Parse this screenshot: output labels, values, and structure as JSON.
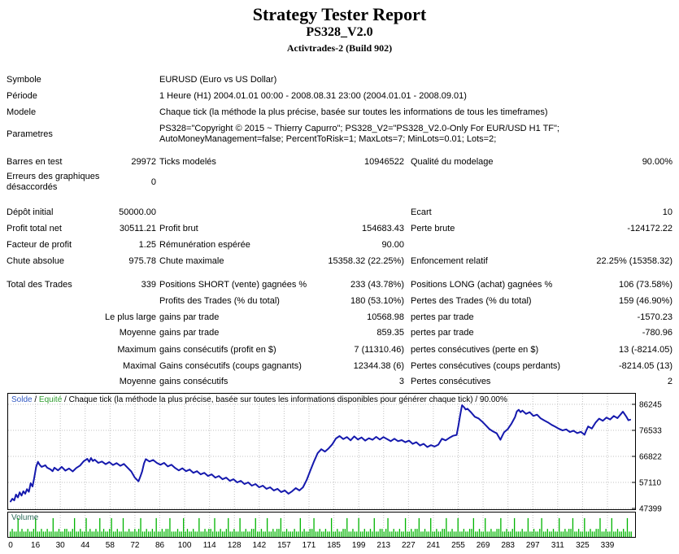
{
  "header": {
    "title": "Strategy Tester Report",
    "strategy": "PS328_V2.0",
    "account": "Activtrades-2 (Build 902)"
  },
  "report": {
    "rows": [
      [
        "Symbole",
        "",
        "EURUSD (Euro vs US Dollar)",
        "",
        "",
        ""
      ],
      [
        "Période",
        "",
        "1 Heure (H1) 2004.01.01 00:00 - 2008.08.31 23:00 (2004.01.01 - 2008.09.01)",
        "",
        "",
        ""
      ],
      [
        "Modele",
        "",
        "Chaque tick (la méthode la plus précise, basée sur toutes les informations de tous les timeframes)",
        "",
        "",
        ""
      ],
      [
        "Parametres",
        "",
        "PS328=\"Copyright © 2015 ~ Thierry Capurro\"; PS328_V2=\"PS328_V2.0-Only For EUR/USD H1 TF\";\nAutoMoneyManagement=false; PercentToRisk=1; MaxLots=7; MinLots=0.01; Lots=2;",
        "",
        "",
        ""
      ],
      [
        "Barres en test",
        "29972",
        "Ticks modelés",
        "10946522",
        "Qualité du modelage",
        "90.00%"
      ],
      [
        "Erreurs des graphiques\ndésaccordés",
        "0",
        "",
        "",
        "",
        ""
      ],
      [
        "Dépôt initial",
        "50000.00",
        "",
        "",
        "Ecart",
        "10"
      ],
      [
        "Profit total net",
        "30511.21",
        "Profit brut",
        "154683.43",
        "Perte brute",
        "-124172.22"
      ],
      [
        "Facteur de profit",
        "1.25",
        "Rémunération espérée",
        "90.00",
        "",
        ""
      ],
      [
        "Chute absolue",
        "975.78",
        "Chute maximale",
        "15358.32 (22.25%)",
        "Enfoncement relatif",
        "22.25% (15358.32)"
      ],
      [
        "Total des Trades",
        "339",
        "Positions SHORT (vente) gagnées %",
        "233 (43.78%)",
        "Positions LONG (achat) gagnées %",
        "106 (73.58%)"
      ],
      [
        "",
        "",
        "Profits des Trades (% du total)",
        "180 (53.10%)",
        "Pertes des Trades (% du total)",
        "159 (46.90%)"
      ],
      [
        "",
        "Le plus large",
        "gains par trade",
        "10568.98",
        "pertes par trade",
        "-1570.23"
      ],
      [
        "",
        "Moyenne",
        "gains par trade",
        "859.35",
        "pertes par trade",
        "-780.96"
      ],
      [
        "",
        "Maximum",
        "gains consécutifs (profit en $)",
        "7 (11310.46)",
        "pertes consécutives (perte en $)",
        "13 (-8214.05)"
      ],
      [
        "",
        "Maximal",
        "Gains consécutifs (coups gagnants)",
        "12344.38 (6)",
        "Pertes consécutives (coups perdants)",
        "-8214.05 (13)"
      ],
      [
        "",
        "Moyenne",
        "gains consécutifs",
        "3",
        "Pertes consécutives",
        "2"
      ]
    ]
  },
  "chart_data": {
    "type": "line",
    "legend": {
      "balance_label": "Solde",
      "equity_label": "Equité",
      "separator": " / ",
      "model_text": "Chaque tick (la méthode la plus précise, basée sur toutes les informations disponibles pour générer chaque tick)",
      "quality": "90.00%"
    },
    "xlabel": "",
    "ylabel": "",
    "xlim": [
      0,
      339
    ],
    "ylim": [
      47399,
      86245
    ],
    "grid": true,
    "y_ticks": [
      86245,
      76533,
      66822,
      57110,
      47399
    ],
    "x_ticks": [
      0,
      16,
      30,
      44,
      58,
      72,
      86,
      100,
      114,
      128,
      142,
      157,
      171,
      185,
      199,
      213,
      227,
      241,
      255,
      269,
      283,
      297,
      311,
      325,
      339
    ],
    "series": [
      {
        "name": "Solde",
        "color": "#1519ad",
        "points": [
          [
            0,
            50000
          ],
          [
            1,
            51000
          ],
          [
            2,
            50400
          ],
          [
            3,
            52600
          ],
          [
            4,
            51500
          ],
          [
            5,
            53400
          ],
          [
            6,
            52200
          ],
          [
            7,
            53800
          ],
          [
            8,
            52900
          ],
          [
            9,
            54600
          ],
          [
            10,
            53600
          ],
          [
            11,
            56800
          ],
          [
            12,
            55600
          ],
          [
            13,
            59000
          ],
          [
            14,
            63000
          ],
          [
            15,
            64800
          ],
          [
            16,
            63600
          ],
          [
            17,
            62900
          ],
          [
            19,
            63500
          ],
          [
            20,
            62600
          ],
          [
            22,
            61900
          ],
          [
            23,
            61300
          ],
          [
            24,
            62600
          ],
          [
            26,
            61600
          ],
          [
            28,
            62900
          ],
          [
            30,
            61500
          ],
          [
            32,
            62300
          ],
          [
            34,
            61200
          ],
          [
            36,
            62500
          ],
          [
            38,
            63400
          ],
          [
            40,
            65000
          ],
          [
            42,
            65900
          ],
          [
            43,
            64800
          ],
          [
            44,
            66200
          ],
          [
            45,
            65100
          ],
          [
            46,
            65600
          ],
          [
            48,
            64400
          ],
          [
            50,
            64900
          ],
          [
            52,
            63900
          ],
          [
            54,
            64700
          ],
          [
            56,
            63600
          ],
          [
            58,
            64300
          ],
          [
            60,
            63300
          ],
          [
            62,
            64000
          ],
          [
            64,
            62600
          ],
          [
            66,
            61200
          ],
          [
            68,
            58900
          ],
          [
            70,
            57500
          ],
          [
            71,
            59300
          ],
          [
            72,
            61200
          ],
          [
            73,
            64200
          ],
          [
            74,
            65800
          ],
          [
            76,
            64900
          ],
          [
            78,
            65500
          ],
          [
            80,
            64400
          ],
          [
            82,
            63700
          ],
          [
            84,
            64400
          ],
          [
            86,
            63100
          ],
          [
            88,
            63700
          ],
          [
            90,
            62500
          ],
          [
            92,
            61600
          ],
          [
            94,
            62400
          ],
          [
            96,
            61300
          ],
          [
            98,
            61900
          ],
          [
            100,
            60700
          ],
          [
            102,
            61300
          ],
          [
            104,
            60100
          ],
          [
            106,
            60700
          ],
          [
            108,
            59500
          ],
          [
            110,
            60100
          ],
          [
            112,
            58900
          ],
          [
            114,
            59500
          ],
          [
            116,
            58300
          ],
          [
            118,
            58900
          ],
          [
            120,
            57700
          ],
          [
            122,
            58300
          ],
          [
            124,
            57100
          ],
          [
            126,
            57700
          ],
          [
            128,
            56500
          ],
          [
            130,
            57100
          ],
          [
            132,
            55900
          ],
          [
            134,
            56500
          ],
          [
            136,
            55300
          ],
          [
            138,
            55900
          ],
          [
            140,
            54700
          ],
          [
            142,
            55300
          ],
          [
            144,
            54100
          ],
          [
            146,
            54700
          ],
          [
            148,
            53500
          ],
          [
            150,
            54100
          ],
          [
            152,
            52900
          ],
          [
            154,
            53800
          ],
          [
            156,
            55000
          ],
          [
            158,
            54100
          ],
          [
            160,
            55300
          ],
          [
            162,
            58000
          ],
          [
            164,
            61500
          ],
          [
            166,
            64900
          ],
          [
            168,
            68000
          ],
          [
            170,
            69500
          ],
          [
            172,
            68600
          ],
          [
            174,
            69800
          ],
          [
            176,
            71300
          ],
          [
            178,
            73500
          ],
          [
            180,
            74400
          ],
          [
            182,
            73300
          ],
          [
            184,
            74000
          ],
          [
            186,
            72800
          ],
          [
            188,
            74300
          ],
          [
            190,
            73100
          ],
          [
            192,
            73900
          ],
          [
            194,
            72700
          ],
          [
            196,
            73600
          ],
          [
            198,
            73000
          ],
          [
            200,
            74100
          ],
          [
            202,
            73100
          ],
          [
            204,
            74000
          ],
          [
            206,
            73300
          ],
          [
            208,
            72500
          ],
          [
            210,
            73400
          ],
          [
            212,
            72500
          ],
          [
            214,
            72900
          ],
          [
            216,
            72100
          ],
          [
            218,
            72700
          ],
          [
            220,
            71500
          ],
          [
            222,
            72100
          ],
          [
            224,
            70900
          ],
          [
            226,
            71500
          ],
          [
            228,
            70300
          ],
          [
            230,
            71000
          ],
          [
            232,
            70500
          ],
          [
            234,
            71200
          ],
          [
            236,
            73400
          ],
          [
            238,
            72800
          ],
          [
            240,
            73700
          ],
          [
            242,
            74500
          ],
          [
            244,
            74800
          ],
          [
            245,
            78200
          ],
          [
            246,
            82400
          ],
          [
            247,
            85900
          ],
          [
            248,
            85200
          ],
          [
            249,
            84300
          ],
          [
            250,
            84600
          ],
          [
            252,
            83200
          ],
          [
            254,
            81600
          ],
          [
            256,
            81000
          ],
          [
            258,
            79800
          ],
          [
            260,
            78400
          ],
          [
            262,
            77000
          ],
          [
            264,
            76100
          ],
          [
            266,
            75400
          ],
          [
            268,
            73000
          ],
          [
            269,
            74500
          ],
          [
            270,
            75800
          ],
          [
            272,
            77000
          ],
          [
            274,
            79000
          ],
          [
            276,
            81500
          ],
          [
            277,
            83600
          ],
          [
            278,
            84200
          ],
          [
            279,
            83300
          ],
          [
            280,
            83900
          ],
          [
            282,
            82700
          ],
          [
            284,
            83300
          ],
          [
            286,
            81900
          ],
          [
            288,
            82400
          ],
          [
            290,
            81000
          ],
          [
            292,
            80200
          ],
          [
            294,
            79500
          ],
          [
            296,
            78600
          ],
          [
            298,
            77900
          ],
          [
            300,
            77100
          ],
          [
            302,
            76500
          ],
          [
            304,
            76900
          ],
          [
            306,
            75900
          ],
          [
            308,
            76400
          ],
          [
            310,
            75500
          ],
          [
            312,
            76000
          ],
          [
            314,
            74900
          ],
          [
            315,
            76600
          ],
          [
            316,
            78000
          ],
          [
            318,
            77200
          ],
          [
            320,
            79400
          ],
          [
            322,
            80900
          ],
          [
            324,
            80100
          ],
          [
            326,
            81300
          ],
          [
            328,
            80600
          ],
          [
            330,
            81900
          ],
          [
            332,
            81100
          ],
          [
            334,
            82700
          ],
          [
            335,
            83500
          ],
          [
            336,
            82500
          ],
          [
            337,
            81500
          ],
          [
            338,
            80300
          ],
          [
            339,
            80511
          ]
        ]
      }
    ],
    "volume": {
      "label": "Volume",
      "label_color": "#2f6b5c",
      "bar_color": "#00b400",
      "max_value": 8,
      "bar_values": "2322723223223722322322722322332237223227232232723223722322722322323722322327223233722232272322322722323327223223722322722322337223227223233722322232272322337223223227223223372232272232232722332372232232272232337223227223223372232272232233722322722322337223223722232272232237223223227223233722322722322337223227223223272 2"
    },
    "grid_color": "#c0c0c0",
    "border_color": "#000000",
    "legend_balance_color": "#3259c2",
    "legend_equity_color": "#2e9e2e"
  }
}
